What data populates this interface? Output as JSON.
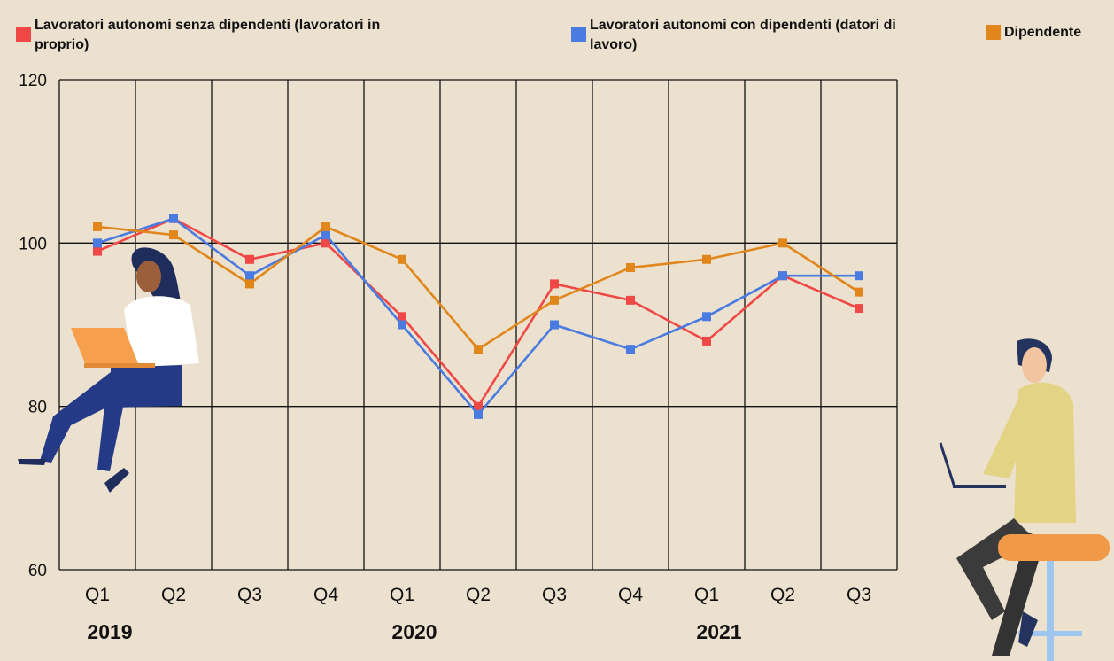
{
  "chart_data": {
    "type": "line",
    "categories": [
      "Q1",
      "Q2",
      "Q3",
      "Q4",
      "Q1",
      "Q2",
      "Q3",
      "Q4",
      "Q1",
      "Q2",
      "Q3"
    ],
    "year_labels": [
      "2019",
      null,
      null,
      null,
      "2020",
      null,
      null,
      null,
      "2021",
      null,
      null
    ],
    "series": [
      {
        "name": "Lavoratori autonomi senza dipendenti (lavoratori in proprio)",
        "color": "#ef4846",
        "values": [
          99,
          103,
          98,
          100,
          91,
          80,
          95,
          93,
          88,
          96,
          92
        ]
      },
      {
        "name": "Lavoratori autonomi con dipendenti (datori di lavoro)",
        "color": "#4a7be0",
        "values": [
          100,
          103,
          96,
          101,
          90,
          79,
          90,
          87,
          91,
          96,
          96
        ]
      },
      {
        "name": "Dipendente",
        "color": "#e0861a",
        "values": [
          102,
          101,
          95,
          102,
          98,
          87,
          93,
          97,
          98,
          100,
          94
        ]
      }
    ],
    "ylim": [
      60,
      120
    ],
    "yticks": [
      60,
      80,
      100,
      120
    ],
    "grid": true
  }
}
